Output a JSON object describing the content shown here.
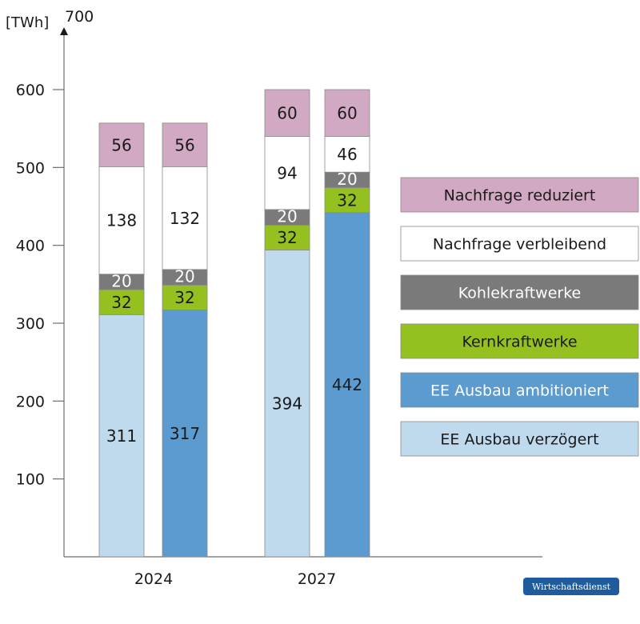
{
  "chart_data": {
    "type": "bar",
    "stacked": true,
    "unit": "[TWh]",
    "ylim": [
      0,
      700
    ],
    "yticks": [
      100,
      200,
      300,
      400,
      500,
      600,
      700
    ],
    "grid": false,
    "legend_position": "right",
    "categories": [
      "2024",
      "2027"
    ],
    "stack_order": [
      "EE Ausbau",
      "Kernkraftwerke",
      "Kohlekraftwerke",
      "Nachfrage verbleibend",
      "Nachfrage reduziert"
    ],
    "bars": [
      {
        "category": "2024",
        "variant": "EE Ausbau verzögert",
        "segments": [
          {
            "series": "EE Ausbau verzögert",
            "value": 311
          },
          {
            "series": "Kernkraftwerke",
            "value": 32
          },
          {
            "series": "Kohlekraftwerke",
            "value": 20
          },
          {
            "series": "Nachfrage verbleibend",
            "value": 138
          },
          {
            "series": "Nachfrage reduziert",
            "value": 56
          }
        ]
      },
      {
        "category": "2024",
        "variant": "EE Ausbau ambitioniert",
        "segments": [
          {
            "series": "EE Ausbau ambitioniert",
            "value": 317
          },
          {
            "series": "Kernkraftwerke",
            "value": 32
          },
          {
            "series": "Kohlekraftwerke",
            "value": 20
          },
          {
            "series": "Nachfrage verbleibend",
            "value": 132
          },
          {
            "series": "Nachfrage reduziert",
            "value": 56
          }
        ]
      },
      {
        "category": "2027",
        "variant": "EE Ausbau verzögert",
        "segments": [
          {
            "series": "EE Ausbau verzögert",
            "value": 394
          },
          {
            "series": "Kernkraftwerke",
            "value": 32
          },
          {
            "series": "Kohlekraftwerke",
            "value": 20
          },
          {
            "series": "Nachfrage verbleibend",
            "value": 94
          },
          {
            "series": "Nachfrage reduziert",
            "value": 60
          }
        ]
      },
      {
        "category": "2027",
        "variant": "EE Ausbau ambitioniert",
        "segments": [
          {
            "series": "EE Ausbau ambitioniert",
            "value": 442
          },
          {
            "series": "Kernkraftwerke",
            "value": 32
          },
          {
            "series": "Kohlekraftwerke",
            "value": 20
          },
          {
            "series": "Nachfrage verbleibend",
            "value": 46
          },
          {
            "series": "Nachfrage reduziert",
            "value": 60
          }
        ]
      }
    ],
    "legend": [
      {
        "label": "Nachfrage reduziert",
        "color": "#d2a9c3",
        "text_color": "#1a1a1a"
      },
      {
        "label": "Nachfrage verbleibend",
        "color": "#ffffff",
        "text_color": "#1a1a1a"
      },
      {
        "label": "Kohlekraftwerke",
        "color": "#7a7a7a",
        "text_color": "#ffffff"
      },
      {
        "label": "Kernkraftwerke",
        "color": "#94c11f",
        "text_color": "#1a1a1a"
      },
      {
        "label": "EE Ausbau ambitioniert",
        "color": "#5b9bd0",
        "text_color": "#ffffff"
      },
      {
        "label": "EE Ausbau verzögert",
        "color": "#bfd9ed",
        "text_color": "#1a1a1a"
      }
    ],
    "segment_text_colors": {
      "EE Ausbau verzögert": "#1a1a1a",
      "EE Ausbau ambitioniert": "#1a1a1a",
      "Kernkraftwerke": "#1a1a1a",
      "Kohlekraftwerke": "#ffffff",
      "Nachfrage verbleibend": "#1a1a1a",
      "Nachfrage reduziert": "#1a1a1a"
    }
  },
  "source_logo": {
    "text": "Wirtschaftsdienst",
    "color": "#1f5c9e"
  }
}
